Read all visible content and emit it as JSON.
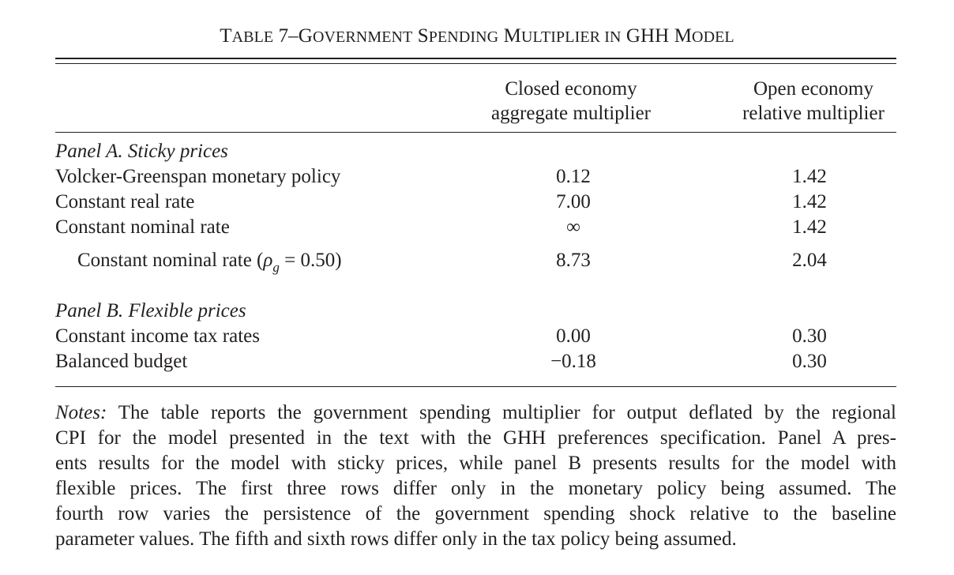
{
  "title": {
    "prefix": "T",
    "prefix_small": "ABLE",
    "number": " 7–",
    "w1_cap": "G",
    "w1_small": "OVERNMENT",
    "w2_cap": " S",
    "w2_small": "PENDING",
    "w3_cap": " M",
    "w3_small": "ULTIPLIER",
    "w4_small": " IN",
    "w5": " GHH",
    "w6_cap": " M",
    "w6_small": "ODEL"
  },
  "columns": {
    "closed": [
      "Closed economy",
      "aggregate multiplier"
    ],
    "open": [
      "Open economy",
      "relative multiplier"
    ]
  },
  "panel_a": {
    "title": "Panel A. Sticky prices",
    "rows": [
      {
        "label": "Volcker-Greenspan monetary policy",
        "closed": "0.12",
        "open": "1.42"
      },
      {
        "label": "Constant real rate",
        "closed": "7.00",
        "open": "1.42"
      },
      {
        "label": "Constant nominal rate",
        "closed": "∞",
        "open": "1.42"
      }
    ],
    "persistence_row": {
      "label_pre": "Constant nominal rate (",
      "rho": "ρ",
      "sub": "g",
      "label_post": " = 0.50)",
      "closed": "8.73",
      "open": "2.04"
    }
  },
  "panel_b": {
    "title": "Panel B. Flexible prices",
    "rows": [
      {
        "label": "Constant income tax rates",
        "closed": "0.00",
        "open": "0.30"
      },
      {
        "label": "Balanced budget",
        "closed": "−0.18",
        "open": "0.30"
      }
    ]
  },
  "notes": {
    "label": "Notes:",
    "lines": [
      " The table reports the government spending multiplier for output deflated by the regional",
      "CPI for the model presented in the text with the GHH preferences specification. Panel A pres-",
      "ents results for the model with sticky prices, while panel B presents results for the model with",
      "flexible prices. The first three rows differ only in the monetary policy being assumed. The",
      "fourth row varies the persistence of the government spending shock relative to the baseline",
      "parameter values. The fifth and sixth rows differ only in the tax policy being assumed."
    ]
  }
}
